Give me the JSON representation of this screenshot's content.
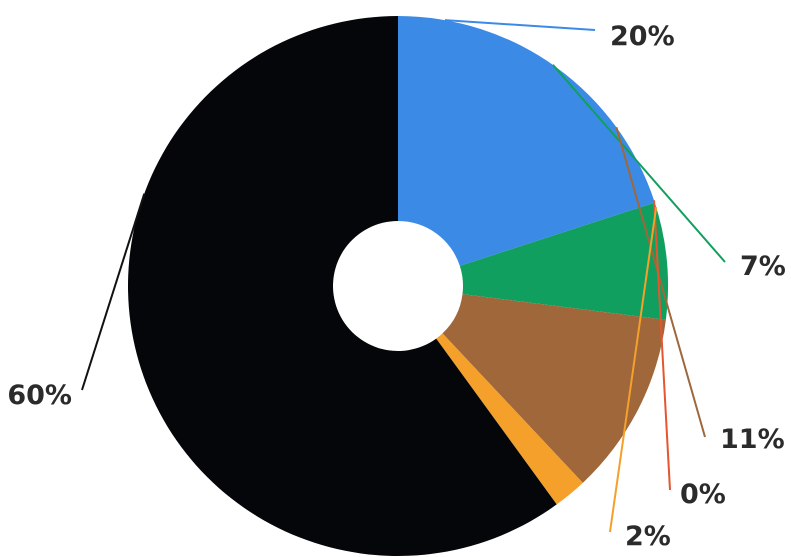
{
  "chart_data": {
    "type": "pie",
    "style": "donut",
    "slices": [
      {
        "label": "20%",
        "value": 20,
        "color": "#3b8be6"
      },
      {
        "label": "7%",
        "value": 7,
        "color": "#119f5f"
      },
      {
        "label": "11%",
        "value": 11,
        "color": "#a0673a"
      },
      {
        "label": "0%",
        "value": 0,
        "color": "#e4562f"
      },
      {
        "label": "2%",
        "value": 2,
        "color": "#f4a02a"
      },
      {
        "label": "60%",
        "value": 60,
        "color": "#05060a"
      }
    ],
    "start_angle": "12 o'clock",
    "direction": "clockwise",
    "legend": "none"
  }
}
